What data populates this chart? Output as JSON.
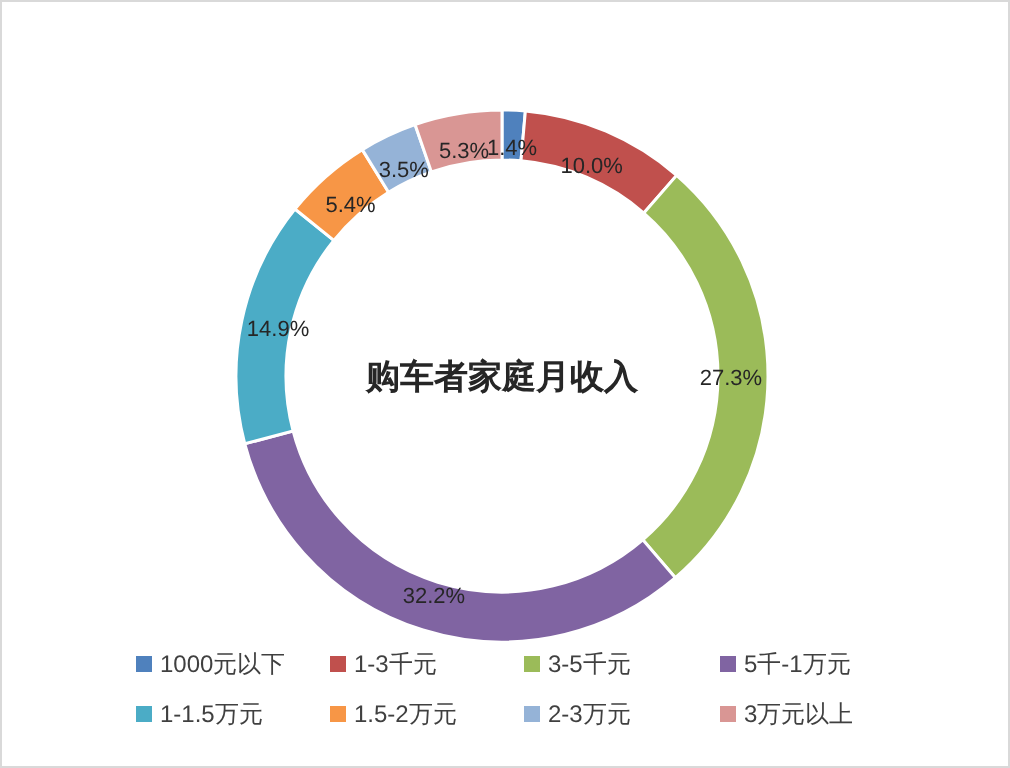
{
  "chart_data": {
    "type": "donut",
    "title": "购车者家庭月收入",
    "categories": [
      "1000元以下",
      "1-3千元",
      "3-5千元",
      "5千-1万元",
      "1-1.5万元",
      "1.5-2万元",
      "2-3万元",
      "3万元以上"
    ],
    "values": [
      1.4,
      10.0,
      27.3,
      32.2,
      14.9,
      5.4,
      3.5,
      5.3
    ],
    "value_labels": [
      "1.4%",
      "10.0%",
      "27.3%",
      "32.2%",
      "14.9%",
      "5.4%",
      "3.5%",
      "5.3%"
    ],
    "colors": [
      "#4f81bd",
      "#c0504d",
      "#9bbb59",
      "#8064a2",
      "#4bacc6",
      "#f79646",
      "#95b3d7",
      "#d99694"
    ],
    "legend": "bottom"
  }
}
